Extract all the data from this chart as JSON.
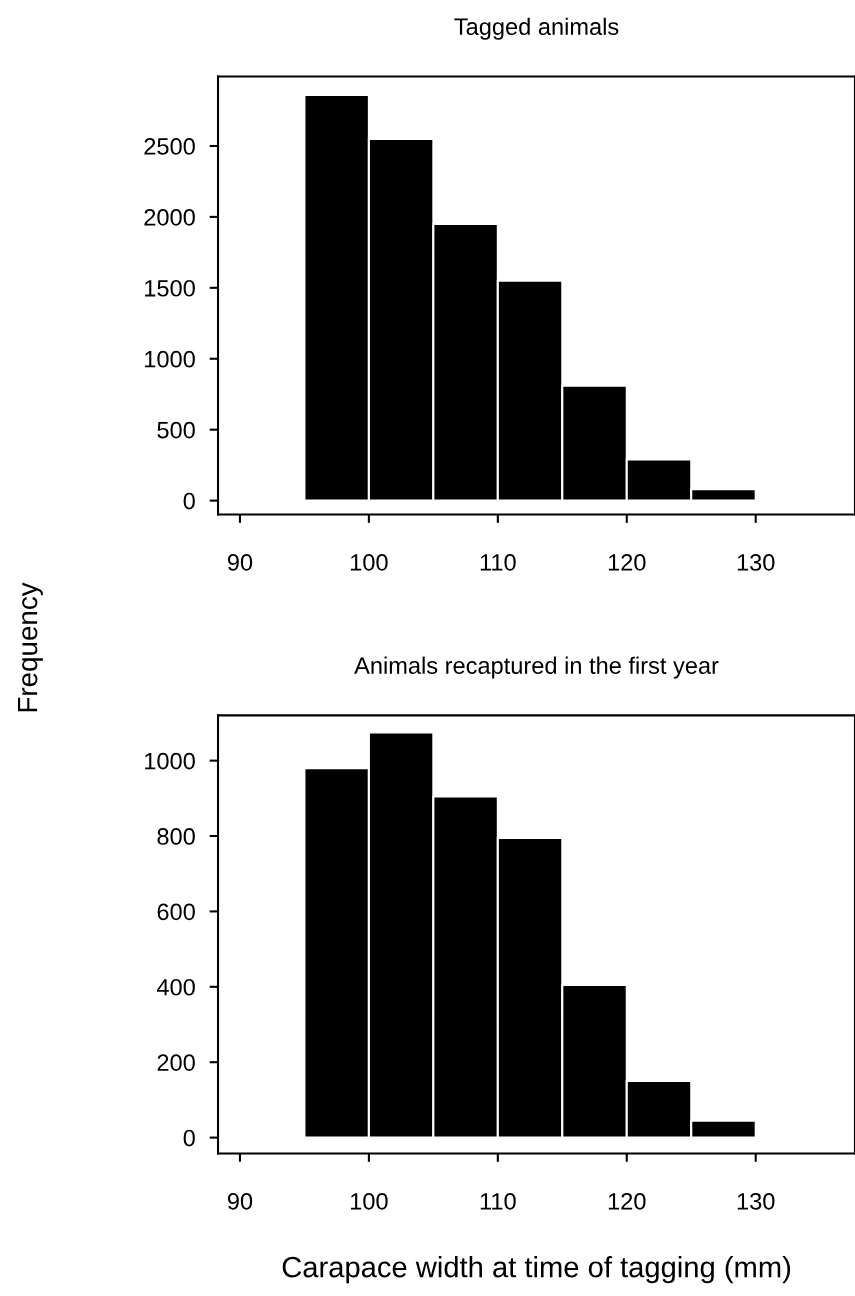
{
  "chart_data": [
    {
      "type": "histogram",
      "title": "Tagged animals",
      "ylabel": "Frequency",
      "bins": [
        95,
        100,
        105,
        110,
        115,
        120,
        125,
        130
      ],
      "values": [
        2860,
        2550,
        1950,
        1550,
        810,
        290,
        80
      ],
      "color": "#000000",
      "xlim": [
        88.3,
        137.7
      ],
      "xticks": [
        90,
        100,
        110,
        120,
        130
      ],
      "ylim": [
        -98,
        2990
      ],
      "yticks": [
        0,
        500,
        1000,
        1500,
        2000,
        2500
      ],
      "grid": false
    },
    {
      "type": "histogram",
      "title": "Animals recaptured in the first year",
      "xlabel": "Carapace width at time of tagging (mm)",
      "bins": [
        95,
        100,
        105,
        110,
        115,
        120,
        125,
        130
      ],
      "values": [
        980,
        1075,
        905,
        795,
        405,
        150,
        45
      ],
      "color": "#000000",
      "xlim": [
        88.3,
        137.7
      ],
      "xticks": [
        90,
        100,
        110,
        120,
        130
      ],
      "ylim": [
        -42,
        1120
      ],
      "yticks": [
        0,
        200,
        400,
        600,
        800,
        1000
      ],
      "grid": false
    }
  ]
}
